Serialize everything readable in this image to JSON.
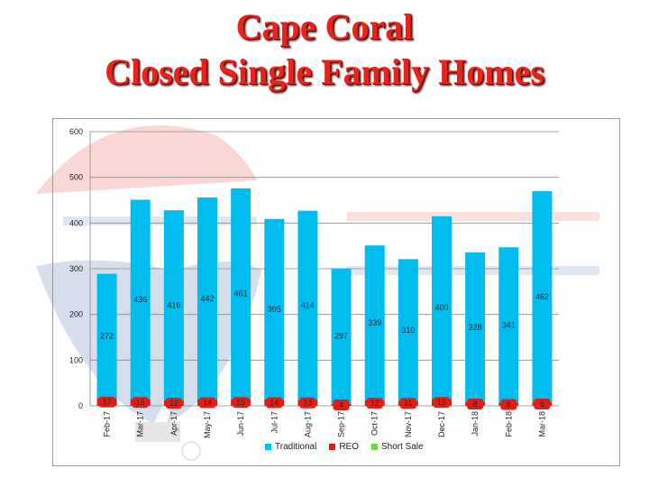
{
  "header": {
    "title_line1": "Cape Coral",
    "title_line2": "Closed Single Family Homes"
  },
  "colors": {
    "title": "#e8231c",
    "traditional": "#00bcef",
    "reo": "#e11d14",
    "short_sale": "#7fd13b",
    "grid": "#8a8a8a"
  },
  "chart_data": {
    "type": "bar",
    "stacked": true,
    "categories": [
      "Feb-17",
      "Mar-17",
      "Apr-17",
      "May-17",
      "Jun-17",
      "Jul-17",
      "Aug-17",
      "Sep-17",
      "Oct-17",
      "Nov-17",
      "Dec-17",
      "Jan-18",
      "Feb-18",
      "Mar-18"
    ],
    "series": [
      {
        "name": "Traditional",
        "values": [
          272,
          436,
          416,
          442,
          461,
          395,
          414,
          297,
          339,
          310,
          400,
          328,
          341,
          462
        ]
      },
      {
        "name": "REO",
        "values": [
          17,
          15,
          12,
          14,
          15,
          14,
          13,
          4,
          12,
          11,
          15,
          8,
          6,
          8
        ]
      },
      {
        "name": "Short Sale",
        "values": [
          0,
          0,
          0,
          0,
          0,
          0,
          0,
          0,
          0,
          0,
          0,
          0,
          0,
          0
        ]
      }
    ],
    "y_ticks": [
      "0",
      "100",
      "200",
      "300",
      "400",
      "500",
      "600"
    ],
    "ylim": [
      0,
      600
    ],
    "grid": true,
    "legend_position": "bottom"
  }
}
